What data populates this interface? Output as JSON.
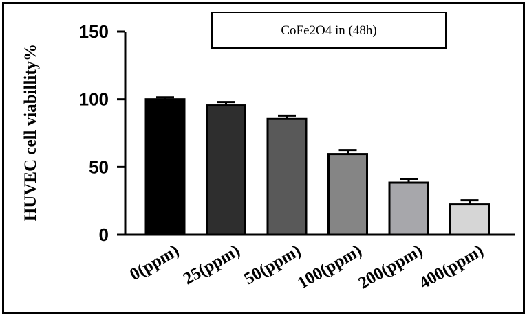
{
  "chart_data": {
    "type": "bar",
    "title": "CoFe2O4 in (48h)",
    "ylabel": "HUVEC cell viabillity%",
    "xlabel": "",
    "categories": [
      "0(ppm)",
      "25(ppm)",
      "50(ppm)",
      "100(ppm)",
      "200(ppm)",
      "400(ppm)"
    ],
    "values": [
      100,
      95.5,
      85.5,
      59.5,
      38.5,
      22.5
    ],
    "errors": [
      1.5,
      2.5,
      2.5,
      3,
      2.5,
      3
    ],
    "yticks": [
      0,
      50,
      100,
      150
    ],
    "ylim": [
      0,
      150
    ],
    "bar_colors": [
      "#000000",
      "#2e2e2e",
      "#595959",
      "#858585",
      "#a7a7ab",
      "#d6d6d6"
    ],
    "legend": "top-right",
    "grid": false
  }
}
